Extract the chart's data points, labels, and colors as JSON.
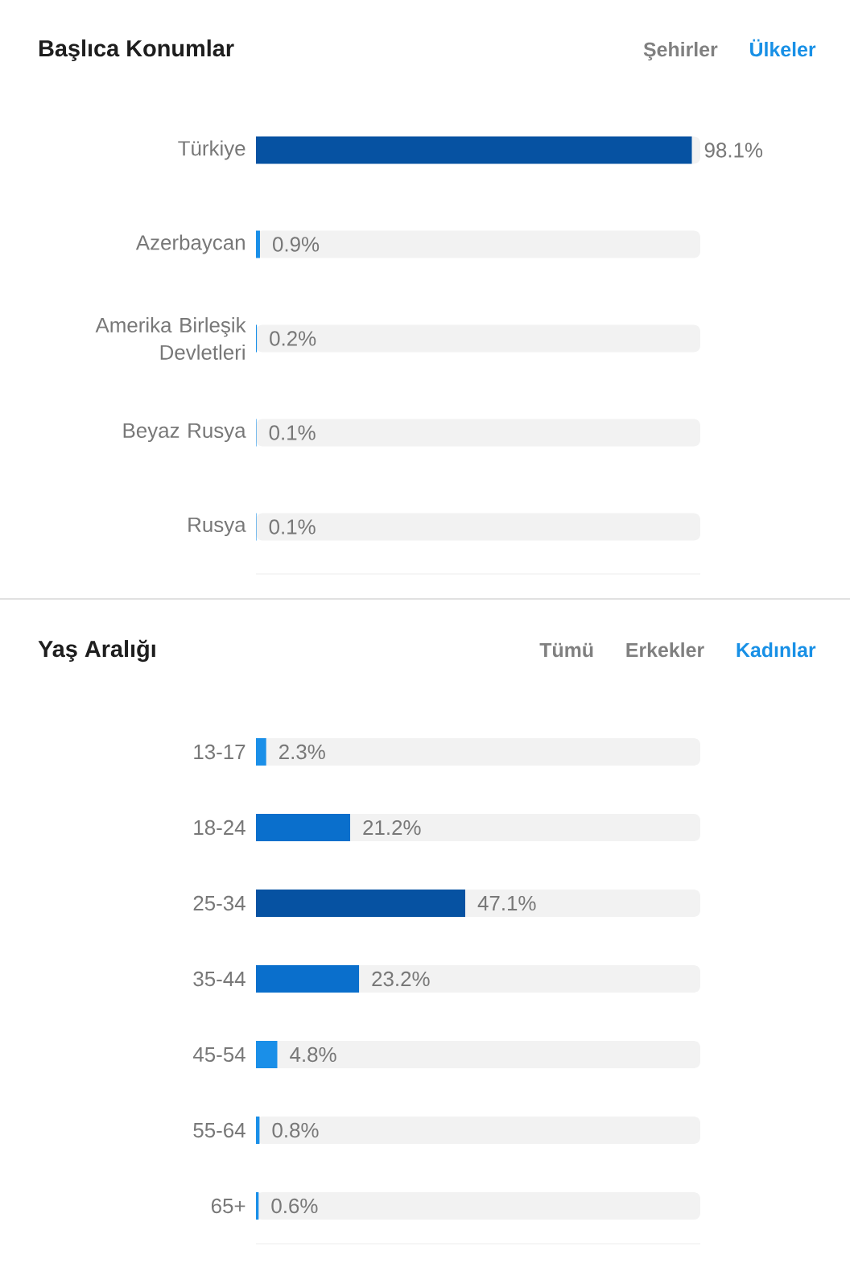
{
  "chart_data": [
    {
      "type": "bar",
      "orientation": "horizontal",
      "title": "Başlıca Konumlar",
      "annotations": [
        "Şehirler",
        "Ülkeler"
      ],
      "categories": [
        "Türkiye",
        "Azerbaycan",
        "Amerika Birleşik Devletleri",
        "Beyaz Rusya",
        "Rusya"
      ],
      "values": [
        98.1,
        0.9,
        0.2,
        0.1,
        0.1
      ],
      "value_labels": [
        "98.1%",
        "0.9%",
        "0.2%",
        "0.1%",
        "0.1%"
      ],
      "colors": [
        "#0652a2",
        "#1a8fe8",
        "#1a8fe8",
        "#1a8fe8",
        "#1a8fe8"
      ],
      "xlim": [
        0,
        100
      ]
    },
    {
      "type": "bar",
      "orientation": "horizontal",
      "title": "Yaş Aralığı",
      "annotations": [
        "Tümü",
        "Erkekler",
        "Kadınlar"
      ],
      "categories": [
        "13-17",
        "18-24",
        "25-34",
        "35-44",
        "45-54",
        "55-64",
        "65+"
      ],
      "values": [
        2.3,
        21.2,
        47.1,
        23.2,
        4.8,
        0.8,
        0.6
      ],
      "value_labels": [
        "2.3%",
        "21.2%",
        "47.1%",
        "23.2%",
        "4.8%",
        "0.8%",
        "0.6%"
      ],
      "colors": [
        "#1a8fe8",
        "#0a6fcc",
        "#0652a2",
        "#0a6fcc",
        "#1a8fe8",
        "#1a8fe8",
        "#1a8fe8"
      ],
      "xlim": [
        0,
        100
      ]
    }
  ]
}
